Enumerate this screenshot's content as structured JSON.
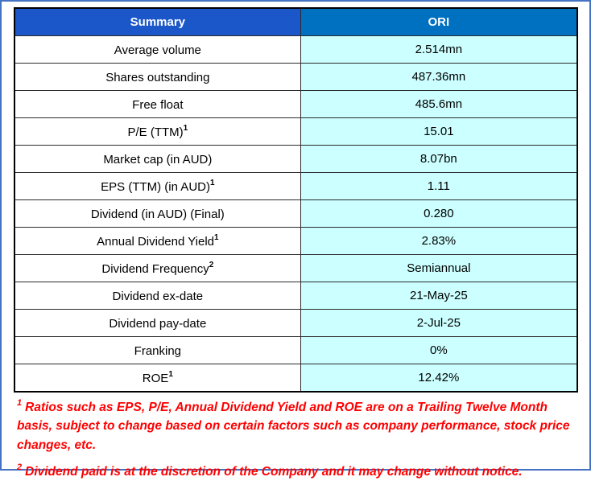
{
  "colors": {
    "outer_frame": "#4472C4",
    "header_summary_bg": "#1B57C9",
    "header_ori_bg": "#0070C0",
    "value_column_bg": "#CCFFFF",
    "footnote_text": "#FF0000",
    "table_border": "#000000"
  },
  "table": {
    "header": {
      "summary_label": "Summary",
      "ori_label": "ORI"
    },
    "rows": [
      {
        "label": "Average volume",
        "sup": "",
        "value": "2.514mn"
      },
      {
        "label": "Shares outstanding",
        "sup": "",
        "value": "487.36mn"
      },
      {
        "label": "Free float",
        "sup": "",
        "value": "485.6mn"
      },
      {
        "label": "P/E (TTM)",
        "sup": "1",
        "value": "15.01"
      },
      {
        "label": "Market cap (in AUD)",
        "sup": "",
        "value": "8.07bn"
      },
      {
        "label": "EPS (TTM) (in AUD)",
        "sup": "1",
        "value": "1.11"
      },
      {
        "label": "Dividend (in AUD) (Final)",
        "sup": "",
        "value": "0.280"
      },
      {
        "label": "Annual Dividend Yield",
        "sup": "1",
        "value": "2.83%"
      },
      {
        "label": "Dividend Frequency",
        "sup": "2",
        "value": "Semiannual"
      },
      {
        "label": "Dividend ex-date",
        "sup": "",
        "value": "21-May-25"
      },
      {
        "label": "Dividend pay-date",
        "sup": "",
        "value": "2-Jul-25"
      },
      {
        "label": "Franking",
        "sup": "",
        "value": "0%"
      },
      {
        "label": "ROE",
        "sup": "1",
        "value": "12.42%"
      }
    ]
  },
  "footnotes": [
    {
      "sup": "1",
      "text": "Ratios such as EPS, P/E, Annual Dividend Yield and ROE are on a Trailing Twelve Month basis, subject to change based on certain factors such as company performance, stock price changes, etc."
    },
    {
      "sup": "2",
      "text": "Dividend paid is at the discretion of the Company and it may change without notice."
    }
  ]
}
